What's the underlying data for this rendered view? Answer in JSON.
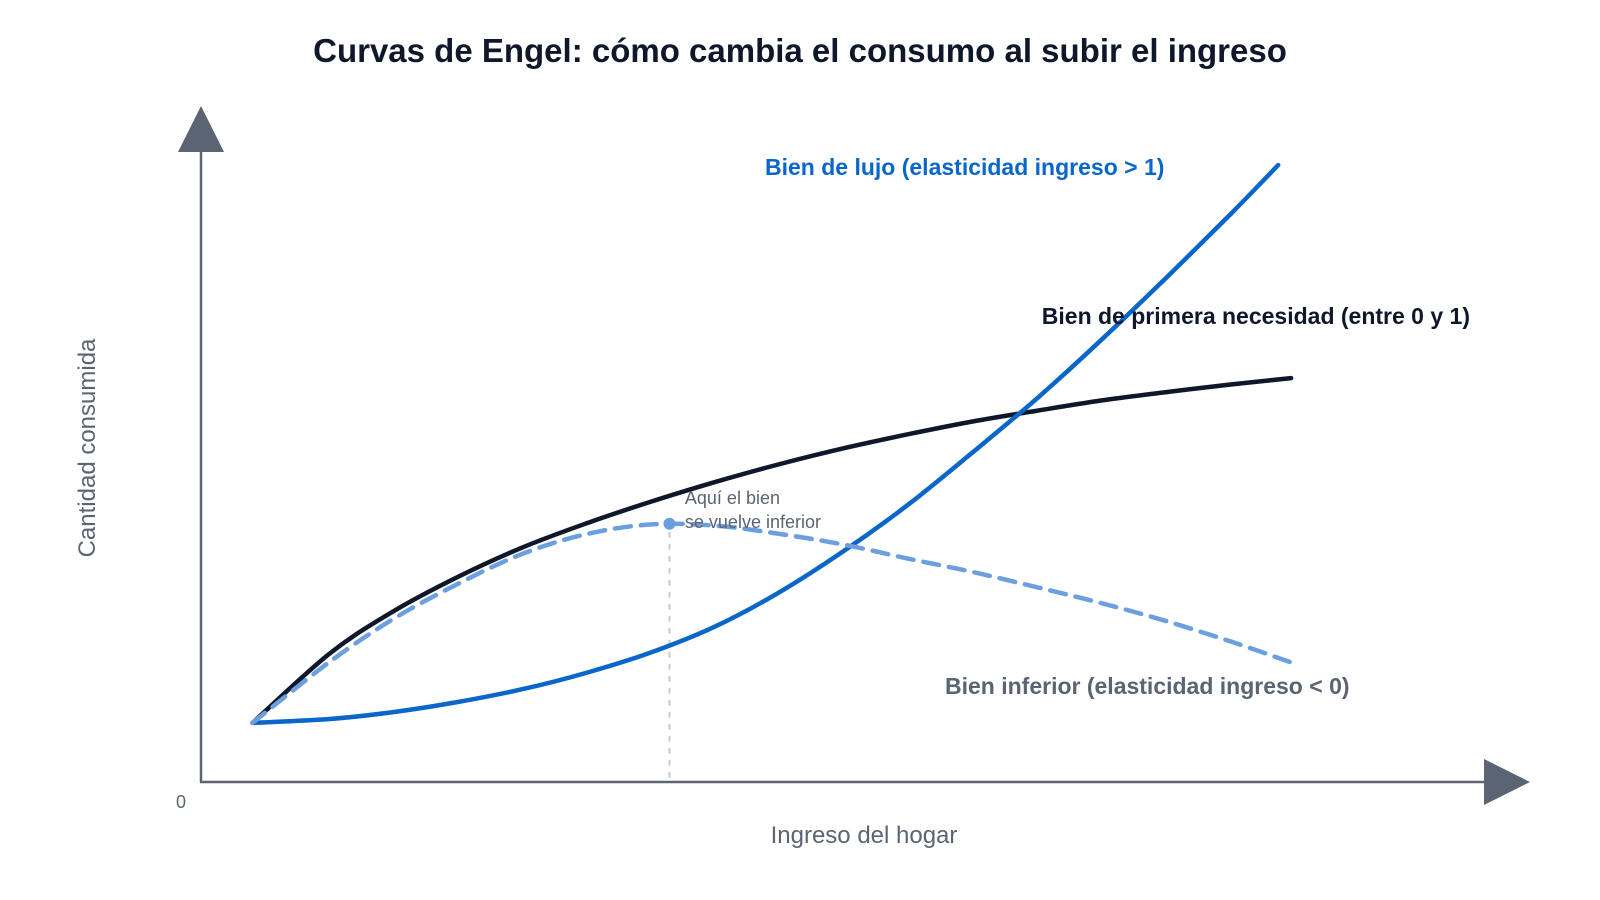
{
  "chart_data": {
    "type": "line",
    "title": "Curvas de Engel: cómo cambia el consumo al subir el ingreso",
    "xlabel": "Ingreso del hogar",
    "ylabel": "Cantidad consumida",
    "x_tick_labels": [
      "0"
    ],
    "xlim": [
      0,
      100
    ],
    "ylim": [
      0,
      100
    ],
    "grid": false,
    "axis_color": "#5b6472",
    "series": [
      {
        "name": "Bien de lujo (elasticidad ingreso > 1)",
        "label_color": "#0a66c8",
        "color": "#0a66c8",
        "dashed": false,
        "points": [
          [
            4,
            9.3
          ],
          [
            10,
            9.9
          ],
          [
            15,
            11.0
          ],
          [
            20,
            12.6
          ],
          [
            25,
            14.6
          ],
          [
            30,
            17.2
          ],
          [
            35,
            20.4
          ],
          [
            40,
            24.5
          ],
          [
            45,
            29.9
          ],
          [
            50,
            36.4
          ],
          [
            55,
            43.7
          ],
          [
            60,
            51.9
          ],
          [
            65,
            60.4
          ],
          [
            70,
            69.6
          ],
          [
            75,
            79.3
          ],
          [
            80,
            89.3
          ],
          [
            83.7,
            97.0
          ]
        ]
      },
      {
        "name": "Bien de primera necesidad (entre 0 y 1)",
        "label_color": "#0f172a",
        "color": "#0f172a",
        "dashed": false,
        "points": [
          [
            4,
            9.3
          ],
          [
            10,
            20.2
          ],
          [
            15,
            26.9
          ],
          [
            20,
            32.3
          ],
          [
            25,
            36.9
          ],
          [
            30,
            40.7
          ],
          [
            35,
            44.1
          ],
          [
            40,
            47.2
          ],
          [
            45,
            50.0
          ],
          [
            50,
            52.5
          ],
          [
            55,
            54.7
          ],
          [
            60,
            56.7
          ],
          [
            65,
            58.4
          ],
          [
            70,
            60.0
          ],
          [
            75,
            61.3
          ],
          [
            80,
            62.5
          ],
          [
            84.7,
            63.5
          ]
        ]
      },
      {
        "name": "Bien inferior (elasticidad ingreso < 0)",
        "label_color": "#5b6472",
        "color": "#6b9fe0",
        "dashed": true,
        "points": [
          [
            4,
            9.3
          ],
          [
            10,
            18.9
          ],
          [
            15,
            25.7
          ],
          [
            20,
            31.2
          ],
          [
            25,
            35.9
          ],
          [
            30,
            39.0
          ],
          [
            35,
            40.5
          ],
          [
            40,
            40.3
          ],
          [
            45,
            39.0
          ],
          [
            50,
            37.3
          ],
          [
            55,
            35.1
          ],
          [
            60,
            33.0
          ],
          [
            65,
            30.6
          ],
          [
            70,
            28.1
          ],
          [
            75,
            25.3
          ],
          [
            80,
            22.1
          ],
          [
            84.7,
            18.8
          ]
        ]
      }
    ],
    "annotation": {
      "lines": [
        "Aquí el bien",
        "se vuelve inferior"
      ],
      "x": 37.6,
      "y": 43.7,
      "point": [
        36.4,
        40.6
      ]
    }
  }
}
